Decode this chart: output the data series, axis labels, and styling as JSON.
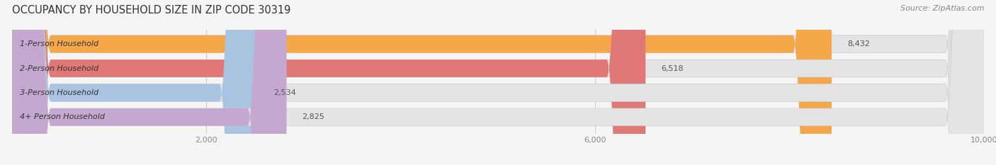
{
  "title": "OCCUPANCY BY HOUSEHOLD SIZE IN ZIP CODE 30319",
  "source": "Source: ZipAtlas.com",
  "categories": [
    "1-Person Household",
    "2-Person Household",
    "3-Person Household",
    "4+ Person Household"
  ],
  "values": [
    8432,
    6518,
    2534,
    2825
  ],
  "bar_colors": [
    "#F5A84A",
    "#E07878",
    "#A8C4E0",
    "#C4A8D0"
  ],
  "xlim": [
    0,
    10000
  ],
  "xticks": [
    2000,
    6000,
    10000
  ],
  "xtick_labels": [
    "2,000",
    "6,000",
    "10,000"
  ],
  "title_fontsize": 10.5,
  "source_fontsize": 8,
  "label_fontsize": 8,
  "value_fontsize": 8,
  "background_color": "#f5f5f5",
  "bar_background": "#e4e4e4"
}
